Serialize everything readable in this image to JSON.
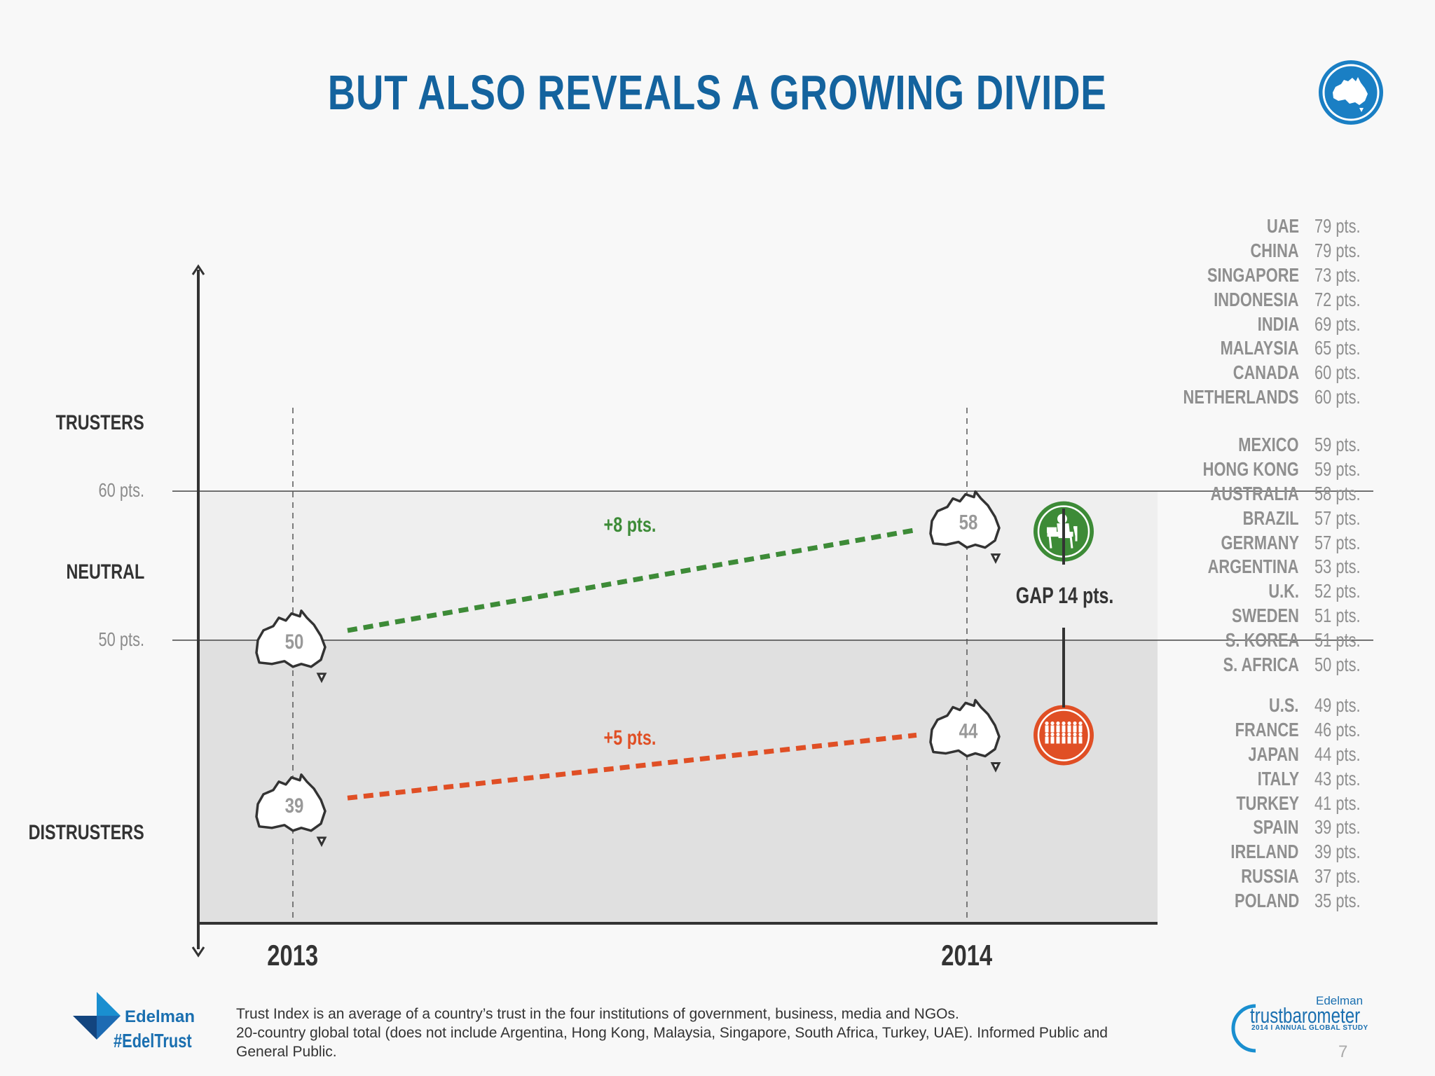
{
  "title": "BUT ALSO REVEALS A GROWING DIVIDE",
  "badge": {
    "icon": "australia-map-icon",
    "color": "#1a7fc4"
  },
  "colors": {
    "trusters_band": "#efefef",
    "distrusters_band": "#e0e0e0",
    "informed_public": "#3d8b37",
    "general_public": "#e04f25",
    "accent": "#14639e"
  },
  "chart_data": {
    "type": "line",
    "x": [
      "2013",
      "2014"
    ],
    "series": [
      {
        "name": "Informed Public",
        "values": [
          50,
          58
        ],
        "change_label": "+8 pts.",
        "icon": "informed-public-person-icon"
      },
      {
        "name": "General Public",
        "values": [
          39,
          44
        ],
        "change_label": "+5 pts.",
        "icon": "general-public-crowd-icon"
      }
    ],
    "ylim": [
      31,
      75
    ],
    "thresholds": [
      {
        "value": 60,
        "label": "60 pts."
      },
      {
        "value": 50,
        "label": "50 pts."
      }
    ],
    "zones": [
      {
        "name": "trusters",
        "label": "TRUSTERS",
        "center_value": 64.5
      },
      {
        "name": "neutral",
        "label": "NEUTRAL",
        "center_value": 54.5
      },
      {
        "name": "distrusters",
        "label": "DISTRUSTERS",
        "center_value": 37.0
      }
    ],
    "gap_label": "GAP 14 pts.",
    "marker": "australia-map-icon"
  },
  "countries": {
    "trusters": [
      {
        "name": "UAE",
        "pts": "79 pts."
      },
      {
        "name": "CHINA",
        "pts": "79 pts."
      },
      {
        "name": "SINGAPORE",
        "pts": "73 pts."
      },
      {
        "name": "INDONESIA",
        "pts": "72 pts."
      },
      {
        "name": "INDIA",
        "pts": "69 pts."
      },
      {
        "name": "MALAYSIA",
        "pts": "65 pts."
      },
      {
        "name": "CANADA",
        "pts": "60 pts."
      },
      {
        "name": "NETHERLANDS",
        "pts": "60 pts."
      }
    ],
    "neutral": [
      {
        "name": "MEXICO",
        "pts": "59 pts."
      },
      {
        "name": "HONG KONG",
        "pts": "59 pts."
      },
      {
        "name": "AUSTRALIA",
        "pts": "58 pts."
      },
      {
        "name": "BRAZIL",
        "pts": "57 pts."
      },
      {
        "name": "GERMANY",
        "pts": "57 pts."
      },
      {
        "name": "ARGENTINA",
        "pts": "53 pts."
      },
      {
        "name": "U.K.",
        "pts": "52 pts."
      },
      {
        "name": "SWEDEN",
        "pts": "51 pts."
      },
      {
        "name": "S. KOREA",
        "pts": "51 pts."
      },
      {
        "name": "S. AFRICA",
        "pts": "50 pts."
      }
    ],
    "distrusters": [
      {
        "name": "U.S.",
        "pts": "49 pts."
      },
      {
        "name": "FRANCE",
        "pts": "46 pts."
      },
      {
        "name": "JAPAN",
        "pts": "44 pts."
      },
      {
        "name": "ITALY",
        "pts": "43 pts."
      },
      {
        "name": "TURKEY",
        "pts": "41 pts."
      },
      {
        "name": "SPAIN",
        "pts": "39 pts."
      },
      {
        "name": "IRELAND",
        "pts": "39 pts."
      },
      {
        "name": "RUSSIA",
        "pts": "37 pts."
      },
      {
        "name": "POLAND",
        "pts": "35 pts."
      }
    ]
  },
  "footer": {
    "line1": "Trust Index is an average of a country’s trust in the four institutions of government, business, media and NGOs.",
    "line2": "20-country global total (does not include Argentina, Hong Kong, Malaysia, Singapore, South Africa, Turkey, UAE). Informed Public and",
    "line3": "General Public.",
    "brand": "Edelman",
    "hashtag": "#EdelTrust",
    "tb_brand": "Edelman",
    "tb_name": "trustbarometer",
    "tb_sub": "2014 I ANNUAL GLOBAL STUDY",
    "page_number": "7"
  }
}
